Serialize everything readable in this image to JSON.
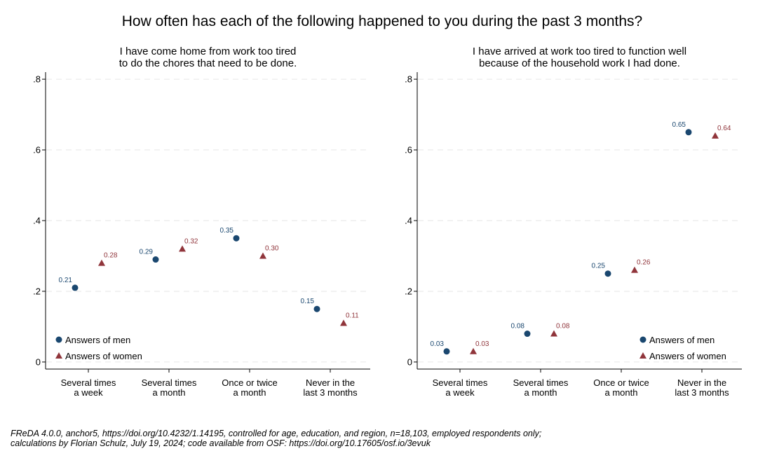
{
  "title": "How often has each of the following happened to you during the past 3 months?",
  "source": [
    "FReDA 4.0.0, anchor5, https://doi.org/10.4232/1.14195, controlled for age, education, and region, n=18,103, employed respondents only;",
    "calculations by Florian Schulz, July 19, 2024; code available from OSF: https://doi.org/10.17605/osf.io/3evuk"
  ],
  "chart_data": [
    {
      "type": "dot",
      "title": [
        "I have come home from work too tired",
        "to do the chores that need to be done."
      ],
      "categories": [
        [
          "Several times",
          "a week"
        ],
        [
          "Several times",
          "a month"
        ],
        [
          "Once or twice",
          "a month"
        ],
        [
          "Never in the",
          "last 3 months"
        ]
      ],
      "series": [
        {
          "name": "Answers of men",
          "color": "#1a476f",
          "marker": "circle",
          "values": [
            0.21,
            0.29,
            0.35,
            0.15
          ],
          "value_labels": [
            "0.21",
            "0.29",
            "0.35",
            "0.15"
          ]
        },
        {
          "name": "Answers of women",
          "color": "#90353b",
          "marker": "triangle",
          "values": [
            0.28,
            0.32,
            0.3,
            0.11
          ],
          "value_labels": [
            "0.28",
            "0.32",
            "0.30",
            "0.11"
          ]
        }
      ],
      "ylim": [
        -0.02,
        0.82
      ],
      "yticks": [
        0,
        {
          "value": 0.2,
          "label": ".2"
        },
        {
          "value": 0.4,
          "label": ".4"
        },
        {
          "value": 0.6,
          "label": ".6"
        },
        {
          "value": 0.8,
          "label": ".8"
        }
      ],
      "grid": true,
      "legend": "lower left"
    },
    {
      "type": "dot",
      "title": [
        "I have arrived at work too tired to function well",
        "because of the household work I had done."
      ],
      "categories": [
        [
          "Several times",
          "a week"
        ],
        [
          "Several times",
          "a month"
        ],
        [
          "Once or twice",
          "a month"
        ],
        [
          "Never in the",
          "last 3 months"
        ]
      ],
      "series": [
        {
          "name": "Answers of men",
          "color": "#1a476f",
          "marker": "circle",
          "values": [
            0.03,
            0.08,
            0.25,
            0.65
          ],
          "value_labels": [
            "0.03",
            "0.08",
            "0.25",
            "0.65"
          ]
        },
        {
          "name": "Answers of women",
          "color": "#90353b",
          "marker": "triangle",
          "values": [
            0.03,
            0.08,
            0.26,
            0.64
          ],
          "value_labels": [
            "0.03",
            "0.08",
            "0.26",
            "0.64"
          ]
        }
      ],
      "ylim": [
        -0.02,
        0.82
      ],
      "yticks": [
        0,
        {
          "value": 0.2,
          "label": ".2"
        },
        {
          "value": 0.4,
          "label": ".4"
        },
        {
          "value": 0.6,
          "label": ".6"
        },
        {
          "value": 0.8,
          "label": ".8"
        }
      ],
      "grid": true,
      "legend": "lower right"
    }
  ]
}
